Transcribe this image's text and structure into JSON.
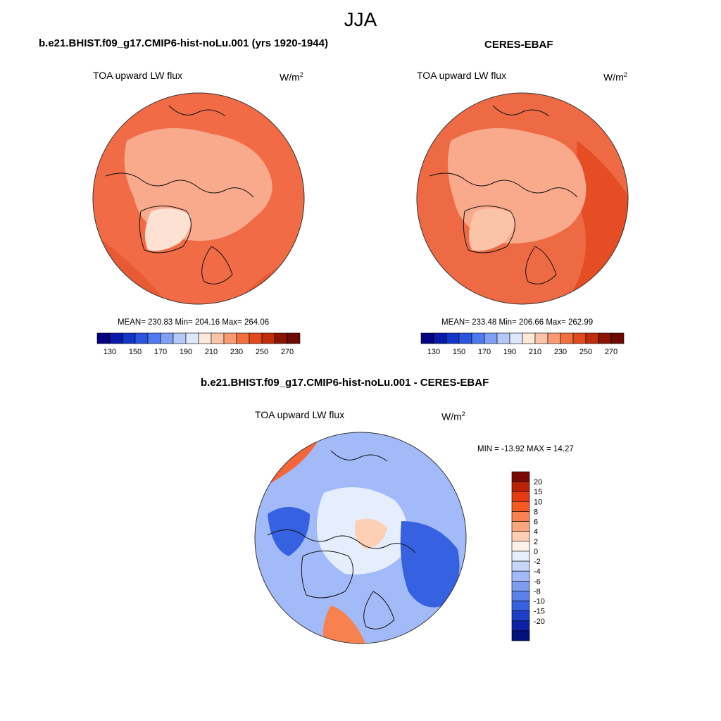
{
  "suptitle": "JJA",
  "colors": {
    "ocean_sea_left": "#f06b46",
    "ocean_sea_right": "#ee6a45",
    "land_light": "#f9a98c",
    "greenland": "#fde2d4",
    "coast": "#111111",
    "frame": "#333333"
  },
  "panels": [
    {
      "title": "b.e21.BHIST.f09_g17.CMIP6-hist-noLu.001 (yrs 1920-1944)",
      "label": "TOA upward LW flux",
      "units": "W/m",
      "units_sup": "2",
      "stats": "MEAN= 230.83  Min= 204.16  Max= 264.06"
    },
    {
      "title": "CERES-EBAF",
      "label": "TOA upward LW flux",
      "units": "W/m",
      "units_sup": "2",
      "stats": "MEAN= 233.48  Min= 206.66  Max= 262.99"
    },
    {
      "title": "b.e21.BHIST.f09_g17.CMIP6-hist-noLu.001 - CERES-EBAF",
      "label": "TOA upward LW flux",
      "units": "W/m",
      "units_sup": "2",
      "stats": "MIN = -13.92 MAX =  14.27"
    }
  ],
  "horizontal_colorbar": {
    "colors": [
      "#04027f",
      "#0a1aa8",
      "#1436c8",
      "#2a55e0",
      "#4f79ee",
      "#7fa0f5",
      "#b4c8f9",
      "#dde8fc",
      "#fde8dc",
      "#fbc4a8",
      "#f99a75",
      "#f2703f",
      "#e04a1e",
      "#c02d0c",
      "#8a1304",
      "#6a0a02"
    ],
    "tick_labels": [
      "130",
      "150",
      "170",
      "190",
      "210",
      "230",
      "250",
      "270"
    ]
  },
  "vertical_colorbar": {
    "colors": [
      "#7a0a04",
      "#b82206",
      "#e23c10",
      "#f45a22",
      "#f8814f",
      "#fba57d",
      "#fdcfb4",
      "#fdf1ea",
      "#e6eefd",
      "#c6d6fb",
      "#a2baf7",
      "#7d9cf2",
      "#5a80ec",
      "#3661e0",
      "#1c3fc8",
      "#0c22a6",
      "#05107c"
    ],
    "tick_labels": [
      "20",
      "15",
      "10",
      "8",
      "6",
      "4",
      "2",
      "0",
      "-2",
      "-4",
      "-6",
      "-8",
      "-10",
      "-15",
      "-20"
    ]
  }
}
